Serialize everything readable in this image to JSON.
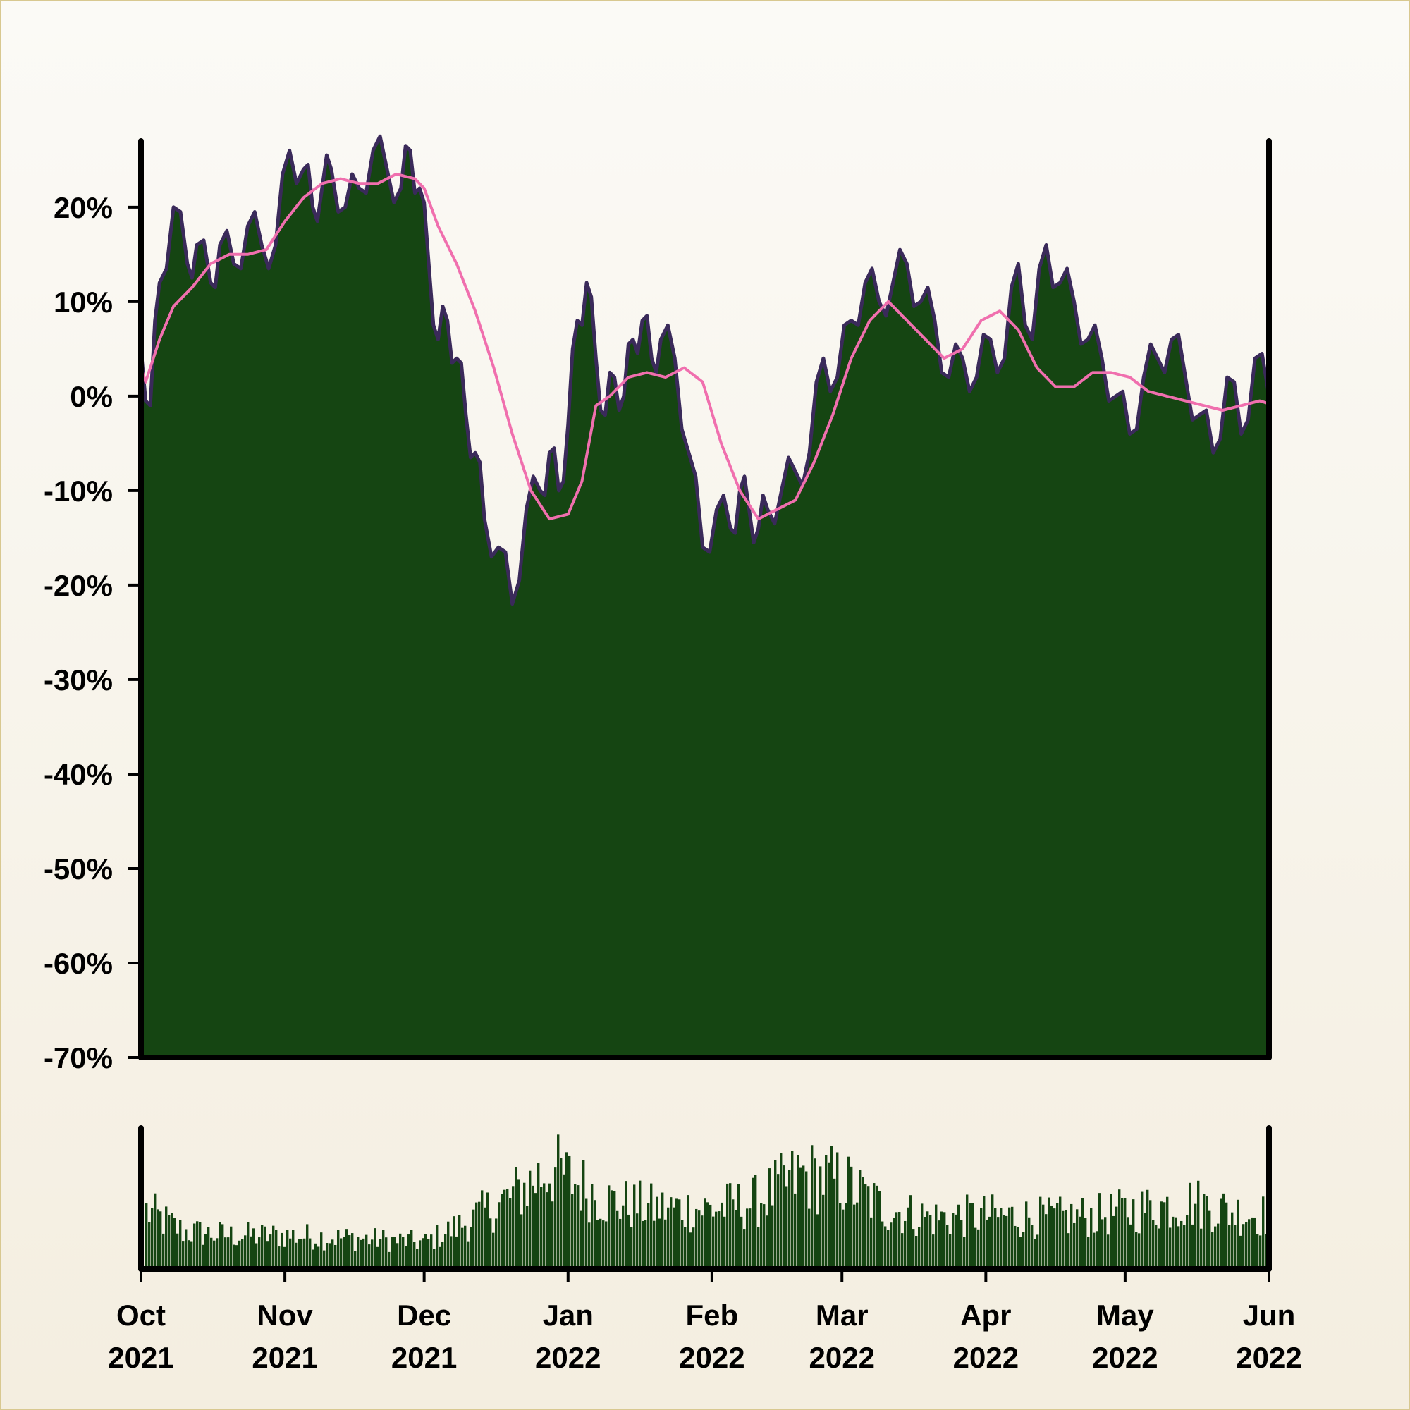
{
  "chart_data": [
    {
      "type": "area",
      "title": "",
      "xlabel": "",
      "ylabel": "",
      "x_range": [
        "2021-10-01",
        "2022-06-01"
      ],
      "ylim": [
        -70,
        27
      ],
      "y_ticks": [
        20,
        10,
        0,
        -10,
        -20,
        -30,
        -40,
        -50,
        -60,
        -70
      ],
      "y_tick_labels": [
        "20%",
        "10%",
        "0%",
        "-10%",
        "-20%",
        "-30%",
        "-40%",
        "-50%",
        "-60%",
        "-70%"
      ],
      "grid": false,
      "legend": "none",
      "colors": {
        "area_fill": "#154512",
        "price_line": "#3a2a5a",
        "moving_average": "#f06fae",
        "axis": "#000000"
      },
      "series": [
        {
          "type": "area",
          "x": [
            "2021-10-01",
            "2021-10-03",
            "2021-10-05",
            "2021-10-08",
            "2021-10-11",
            "2021-10-13",
            "2021-10-16",
            "2021-10-18",
            "2021-10-21",
            "2021-10-24",
            "2021-10-27",
            "2021-10-30",
            "2021-11-02",
            "2021-11-05",
            "2021-11-07",
            "2021-11-09",
            "2021-11-11",
            "2021-11-14",
            "2021-11-17",
            "2021-11-20",
            "2021-11-23",
            "2021-11-26",
            "2021-11-28",
            "2021-11-30",
            "2021-12-02",
            "2021-12-04",
            "2021-12-06",
            "2021-12-08",
            "2021-12-10",
            "2021-12-12",
            "2021-12-14",
            "2021-12-17",
            "2021-12-20",
            "2021-12-23",
            "2021-12-26",
            "2021-12-28",
            "2021-12-30",
            "2022-01-01",
            "2022-01-03",
            "2022-01-05",
            "2022-01-07",
            "2022-01-09",
            "2022-01-11",
            "2022-01-13",
            "2022-01-15",
            "2022-01-17",
            "2022-01-19",
            "2022-01-21",
            "2022-01-24",
            "2022-01-27",
            "2022-01-30",
            "2022-02-02",
            "2022-02-05",
            "2022-02-07",
            "2022-02-09",
            "2022-02-11",
            "2022-02-13",
            "2022-02-16",
            "2022-02-19",
            "2022-02-22",
            "2022-02-25",
            "2022-02-28",
            "2022-03-03",
            "2022-03-06",
            "2022-03-09",
            "2022-03-12",
            "2022-03-15",
            "2022-03-18",
            "2022-03-21",
            "2022-03-24",
            "2022-03-27",
            "2022-03-30",
            "2022-04-02",
            "2022-04-05",
            "2022-04-08",
            "2022-04-11",
            "2022-04-14",
            "2022-04-17",
            "2022-04-20",
            "2022-04-23",
            "2022-04-26",
            "2022-04-29",
            "2022-05-02",
            "2022-05-05",
            "2022-05-08",
            "2022-05-11",
            "2022-05-14",
            "2022-05-17",
            "2022-05-20",
            "2022-05-23",
            "2022-05-26",
            "2022-05-29",
            "2022-06-01"
          ],
          "values": [
            5,
            -1,
            12,
            20,
            14,
            16,
            12,
            16,
            14,
            18,
            16,
            16,
            26,
            24,
            20,
            22,
            24,
            20,
            22,
            26,
            24,
            22,
            26,
            22,
            14,
            6,
            8,
            4,
            -2,
            -6,
            -13,
            -16,
            -22,
            -12,
            -10,
            -6,
            -10,
            -3,
            8,
            12,
            4,
            -2,
            2,
            0,
            6,
            8,
            4,
            6,
            4,
            -6,
            -16,
            -12,
            -14,
            -10,
            -12,
            -14,
            -12,
            -10,
            -8,
            -6,
            4,
            2,
            8,
            12,
            10,
            12,
            14,
            10,
            8,
            2,
            4,
            2,
            6,
            4,
            14,
            6,
            16,
            12,
            10,
            6,
            4,
            0,
            -4,
            2,
            4,
            6,
            2,
            -2,
            -6,
            2,
            -4,
            4,
            0
          ]
        },
        {
          "type": "line",
          "x": [
            "2021-10-01",
            "2021-10-02",
            "2021-10-05",
            "2021-10-08",
            "2021-10-12",
            "2021-10-16",
            "2021-10-20",
            "2021-10-24",
            "2021-10-28",
            "2021-11-01",
            "2021-11-05",
            "2021-11-09",
            "2021-11-13",
            "2021-11-17",
            "2021-11-21",
            "2021-11-25",
            "2021-11-29",
            "2021-12-01",
            "2021-12-04",
            "2021-12-08",
            "2021-12-12",
            "2021-12-16",
            "2021-12-20",
            "2021-12-24",
            "2021-12-28",
            "2022-01-01",
            "2022-01-04",
            "2022-01-07",
            "2022-01-10",
            "2022-01-14",
            "2022-01-18",
            "2022-01-22",
            "2022-01-26",
            "2022-01-30",
            "2022-02-03",
            "2022-02-07",
            "2022-02-11",
            "2022-02-15",
            "2022-02-19",
            "2022-02-23",
            "2022-02-27",
            "2022-03-03",
            "2022-03-07",
            "2022-03-11",
            "2022-03-15",
            "2022-03-19",
            "2022-03-23",
            "2022-03-27",
            "2022-03-31",
            "2022-04-04",
            "2022-04-08",
            "2022-04-12",
            "2022-04-16",
            "2022-04-20",
            "2022-04-24",
            "2022-04-28",
            "2022-05-02",
            "2022-05-06",
            "2022-05-10",
            "2022-05-14",
            "2022-05-18",
            "2022-05-22",
            "2022-05-26",
            "2022-05-30",
            "2022-06-01"
          ],
          "values": [
            3,
            1.5,
            6,
            9.5,
            11.5,
            14,
            15,
            15,
            15.5,
            18.5,
            21,
            22.5,
            23,
            22.5,
            22.5,
            23.5,
            23,
            22,
            18,
            14,
            9,
            3,
            -4,
            -10,
            -13,
            -12.5,
            -9,
            -1,
            0,
            2,
            2.5,
            2,
            3,
            1.5,
            -5,
            -10,
            -13,
            -12,
            -11,
            -7,
            -2,
            4,
            8,
            10,
            8,
            6,
            4,
            5,
            8,
            9,
            7,
            3,
            1,
            1,
            2.5,
            2.5,
            2,
            0.5,
            0,
            -0.5,
            -1,
            -1.5,
            -1,
            -0.5,
            -0.8
          ]
        }
      ]
    },
    {
      "type": "bar",
      "title": "",
      "xlabel": "",
      "ylabel": "",
      "x_range": [
        "2021-10-01",
        "2022-06-01"
      ],
      "x_tick_labels": [
        [
          "Oct",
          "2021"
        ],
        [
          "Nov",
          "2021"
        ],
        [
          "Dec",
          "2021"
        ],
        [
          "Jan",
          "2022"
        ],
        [
          "Feb",
          "2022"
        ],
        [
          "Mar",
          "2022"
        ],
        [
          "Apr",
          "2022"
        ],
        [
          "May",
          "2022"
        ],
        [
          "Jun",
          "2022"
        ]
      ],
      "grid": false,
      "colors": {
        "bar": "#154512"
      },
      "envelope_x": [
        "2021-10-01",
        "2021-10-10",
        "2021-10-20",
        "2021-11-01",
        "2021-11-15",
        "2021-12-01",
        "2021-12-10",
        "2021-12-20",
        "2021-12-28",
        "2022-01-10",
        "2022-01-20",
        "2022-02-01",
        "2022-02-10",
        "2022-02-20",
        "2022-03-01",
        "2022-03-10",
        "2022-03-20",
        "2022-04-01",
        "2022-04-15",
        "2022-04-25",
        "2022-05-05",
        "2022-05-15",
        "2022-05-25",
        "2022-06-01"
      ],
      "envelope_values": [
        45,
        28,
        25,
        25,
        23,
        20,
        35,
        55,
        75,
        50,
        45,
        45,
        50,
        70,
        65,
        45,
        38,
        40,
        38,
        40,
        45,
        50,
        42,
        40
      ]
    }
  ]
}
